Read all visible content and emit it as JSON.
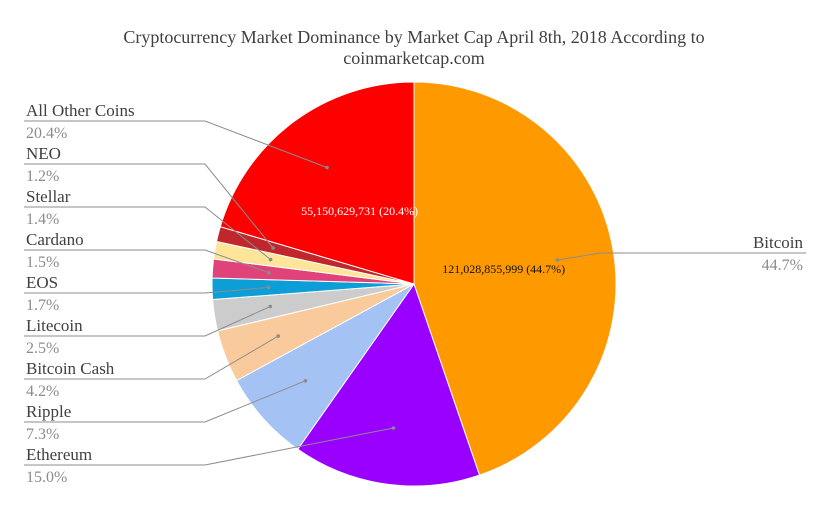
{
  "chart_data": {
    "type": "pie",
    "title": "Cryptocurrency Market Dominance by Market Cap April 8th, 2018 According to coinmarketcap.com",
    "title_lines": [
      "Cryptocurrency Market Dominance by Market Cap April 8th, 2018 According to",
      "coinmarketcap.com"
    ],
    "legend": "none",
    "slices": [
      {
        "name": "Bitcoin",
        "value": 44.7,
        "percent_label": "44.7%",
        "color": "#ff9900",
        "data_label": "121,028,855,999 (44.7%)",
        "data_label_color": "#111111"
      },
      {
        "name": "Ethereum",
        "value": 15.0,
        "percent_label": "15.0%",
        "color": "#9900ff"
      },
      {
        "name": "Ripple",
        "value": 7.3,
        "percent_label": "7.3%",
        "color": "#a4c2f4"
      },
      {
        "name": "Bitcoin Cash",
        "value": 4.2,
        "percent_label": "4.2%",
        "color": "#f9cb9c"
      },
      {
        "name": "Litecoin",
        "value": 2.5,
        "percent_label": "2.5%",
        "color": "#cccccc"
      },
      {
        "name": "EOS",
        "value": 1.7,
        "percent_label": "1.7%",
        "color": "#0c9ed6"
      },
      {
        "name": "Cardano",
        "value": 1.5,
        "percent_label": "1.5%",
        "color": "#e0427a"
      },
      {
        "name": "Stellar",
        "value": 1.4,
        "percent_label": "1.4%",
        "color": "#ffe599"
      },
      {
        "name": "NEO",
        "value": 1.2,
        "percent_label": "1.2%",
        "color": "#c0272d"
      },
      {
        "name": "All Other Coins",
        "value": 20.4,
        "percent_label": "20.4%",
        "color": "#ff0000",
        "data_label": "55,150,629,731 (20.4%)",
        "data_label_color": "#ffffff"
      }
    ]
  }
}
